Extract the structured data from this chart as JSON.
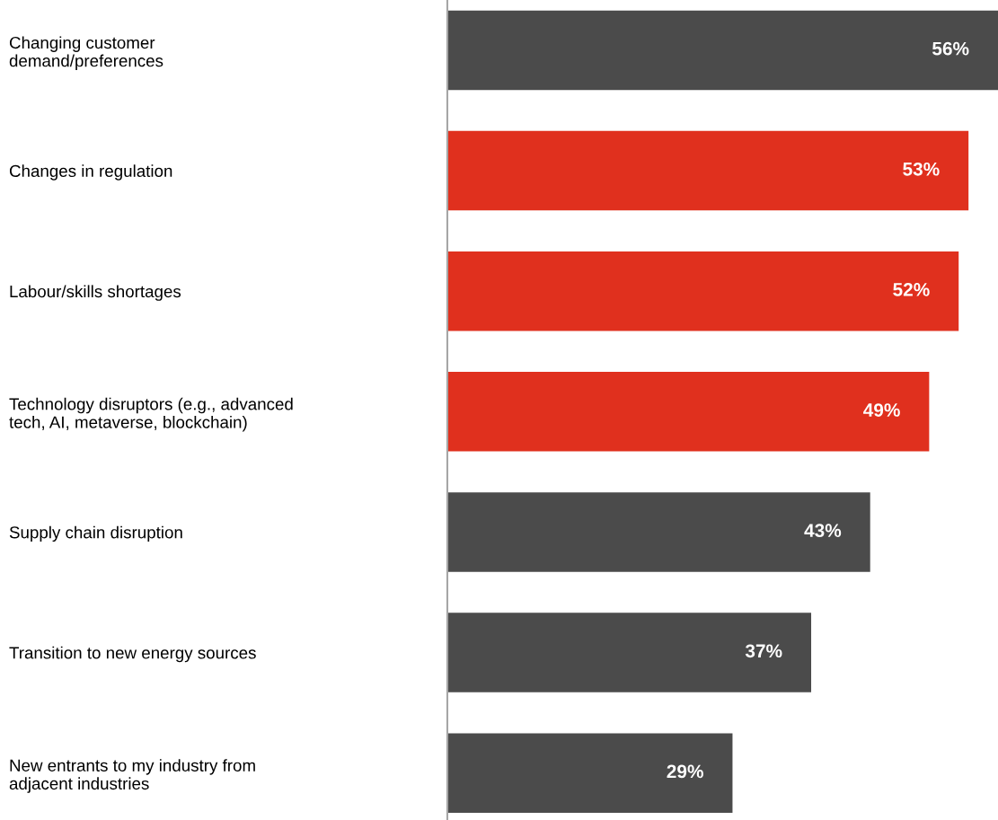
{
  "chart_data": {
    "type": "bar",
    "orientation": "horizontal",
    "categories": [
      "Changing customer\ndemand/preferences",
      "Changes in regulation",
      "Labour/skills shortages",
      "Technology disruptors (e.g., advanced\ntech, AI, metaverse, blockchain)",
      "Supply chain disruption",
      "Transition to new energy sources",
      "New entrants to my industry from\nadjacent industries"
    ],
    "values": [
      56,
      53,
      52,
      49,
      43,
      37,
      29
    ],
    "value_labels": [
      "56%",
      "53%",
      "52%",
      "49%",
      "43%",
      "37%",
      "29%"
    ],
    "colors": [
      "#4b4b4b",
      "#e0301e",
      "#e0301e",
      "#e0301e",
      "#4b4b4b",
      "#4b4b4b",
      "#4b4b4b"
    ],
    "xlim": [
      0,
      56
    ],
    "tick_labels": "y",
    "grid": false,
    "legend": false
  }
}
